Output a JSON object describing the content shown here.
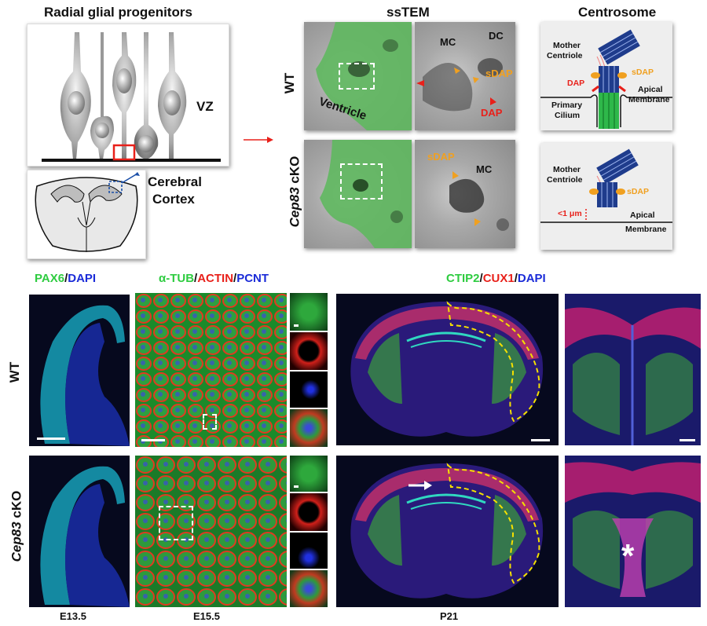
{
  "top": {
    "radial_title": "Radial glial progenitors",
    "vz_label": "VZ",
    "cortex_label_1": "Cerebral",
    "cortex_label_2": "Cortex",
    "sstem_title": "ssTEM",
    "centrosome_title": "Centrosome",
    "wt_label": "WT",
    "cko_label_a": "Cep83",
    "cko_label_b": " cKO",
    "ventricle_label": "Ventricle",
    "wt_tem_labels": {
      "mc": "MC",
      "dc": "DC",
      "sdap": "sDAP",
      "dap": "DAP"
    },
    "cko_tem_labels": {
      "sdap": "sDAP",
      "mc": "MC"
    },
    "centro_wt": {
      "mother_centriole_1": "Mother",
      "mother_centriole_2": "Centriole",
      "sdap": "sDAP",
      "dap": "DAP",
      "apical_1": "Apical",
      "apical_2": "Membrane",
      "cilium_1": "Primary",
      "cilium_2": "Cilium"
    },
    "centro_cko": {
      "mother_centriole_1": "Mother",
      "mother_centriole_2": "Centriole",
      "sdap": "sDAP",
      "distance": "<1 μm",
      "apical_1": "Apical",
      "apical_2": "Membrane"
    }
  },
  "bottom": {
    "pax6": {
      "a": "PAX6",
      "b": "/",
      "c": "DAPI"
    },
    "tub": {
      "a": "α-TUB",
      "b": "/",
      "c": "ACTIN",
      "d": "/",
      "e": "PCNT"
    },
    "ctip": {
      "a": "CTIP2",
      "b": "/",
      "c": "CUX1",
      "d": "/",
      "e": "DAPI"
    },
    "wt_label": "WT",
    "cko_label_a": "Cep83",
    "cko_label_b": " cKO",
    "e135": "E13.5",
    "e155": "E15.5",
    "p21": "P21",
    "asterisk": "*"
  },
  "colors": {
    "green": "#2ecc40",
    "red": "#e8201a",
    "blue": "#1a2bd8",
    "orange": "#f0a020",
    "tem_green": "#5fb85f",
    "yellow_dash": "#f5e000"
  }
}
